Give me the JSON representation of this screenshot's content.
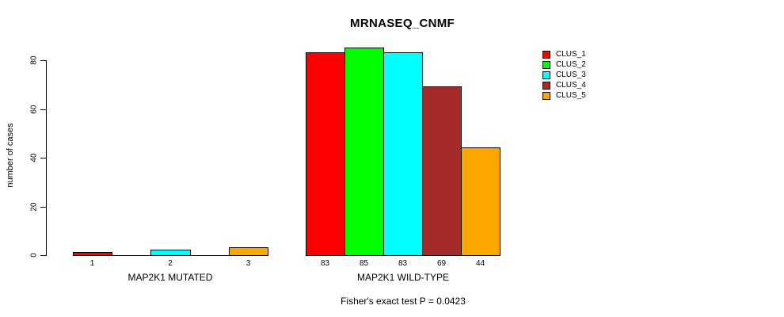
{
  "chart_data": {
    "type": "bar",
    "title": "MRNASEQ_CNMF",
    "ylabel": "number of cases",
    "ylim": [
      0,
      85
    ],
    "yticks": [
      0,
      20,
      40,
      60,
      80
    ],
    "grid": false,
    "legend_position": "top-right",
    "legend": [
      {
        "label": "CLUS_1",
        "color": "#FF0000"
      },
      {
        "label": "CLUS_2",
        "color": "#00FF00"
      },
      {
        "label": "CLUS_3",
        "color": "#00FFFF"
      },
      {
        "label": "CLUS_4",
        "color": "#A52A2A"
      },
      {
        "label": "CLUS_5",
        "color": "#FFA500"
      }
    ],
    "groups": [
      {
        "label": "MAP2K1 MUTATED",
        "bars": [
          {
            "cluster": "CLUS_1",
            "value": 1,
            "label": "1",
            "color": "#FF0000"
          },
          {
            "cluster": "CLUS_2",
            "value": 0,
            "label": "",
            "color": "#00FF00"
          },
          {
            "cluster": "CLUS_3",
            "value": 2,
            "label": "2",
            "color": "#00FFFF"
          },
          {
            "cluster": "CLUS_4",
            "value": 0,
            "label": "",
            "color": "#A52A2A"
          },
          {
            "cluster": "CLUS_5",
            "value": 3,
            "label": "3",
            "color": "#FFA500"
          }
        ]
      },
      {
        "label": "MAP2K1 WILD-TYPE",
        "bars": [
          {
            "cluster": "CLUS_1",
            "value": 83,
            "label": "83",
            "color": "#FF0000"
          },
          {
            "cluster": "CLUS_2",
            "value": 85,
            "label": "85",
            "color": "#00FF00"
          },
          {
            "cluster": "CLUS_3",
            "value": 83,
            "label": "83",
            "color": "#00FFFF"
          },
          {
            "cluster": "CLUS_4",
            "value": 69,
            "label": "69",
            "color": "#A52A2A"
          },
          {
            "cluster": "CLUS_5",
            "value": 44,
            "label": "44",
            "color": "#FFA500"
          }
        ]
      }
    ],
    "annotation": "Fisher's exact test P = 0.0423"
  }
}
